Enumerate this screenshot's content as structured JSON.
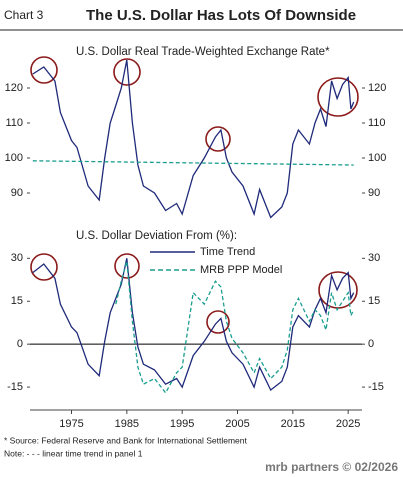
{
  "header": {
    "label": "Chart 3",
    "title": "The U.S. Dollar Has Lots Of Downside"
  },
  "chart_data": [
    {
      "type": "line",
      "title": "U.S. Dollar Real Trade-Weighted Exchange Rate*",
      "x": [
        1968,
        1970,
        1972,
        1973,
        1975,
        1976,
        1978,
        1979,
        1980,
        1981,
        1982,
        1983,
        1984,
        1985,
        1986,
        1987,
        1988,
        1990,
        1992,
        1994,
        1995,
        1997,
        1999,
        2001,
        2002,
        2003,
        2004,
        2006,
        2008,
        2009,
        2011,
        2013,
        2014,
        2015,
        2016,
        2018,
        2019,
        2020,
        2021,
        2022,
        2023,
        2024,
        2025,
        2025.5,
        2026
      ],
      "series": [
        {
          "color": "#1f2a7a",
          "values": [
            124,
            126,
            122,
            113,
            105,
            103,
            92,
            90,
            88,
            100,
            110,
            115,
            120,
            128,
            110,
            98,
            92,
            90,
            85,
            87,
            84,
            95,
            100,
            106,
            108,
            100,
            96,
            92,
            84,
            91,
            83,
            86,
            90,
            104,
            108,
            104,
            110,
            114,
            109,
            122,
            117,
            121,
            123,
            114,
            116
          ]
        },
        {
          "color": "#1a9e8f",
          "dashed": true,
          "x": [
            1968,
            2026
          ],
          "values": [
            99.2,
            98
          ]
        }
      ],
      "xlim": [
        1967.5,
        2027.5
      ],
      "ylim": [
        84,
        128
      ],
      "yticks": [
        90,
        100,
        110,
        120
      ]
    },
    {
      "type": "line",
      "title": "U.S. Dollar Deviation From (%):",
      "x": [
        1968,
        1970,
        1972,
        1973,
        1975,
        1976,
        1978,
        1979,
        1980,
        1981,
        1982,
        1983,
        1984,
        1985,
        1986,
        1987,
        1988,
        1990,
        1992,
        1994,
        1995,
        1997,
        1999,
        2001,
        2002,
        2003,
        2004,
        2006,
        2008,
        2009,
        2011,
        2013,
        2014,
        2015,
        2016,
        2018,
        2019,
        2020,
        2021,
        2022,
        2023,
        2024,
        2025,
        2025.5,
        2026
      ],
      "series": [
        {
          "name": "Time Trend",
          "color": "#1f2a7a",
          "values": [
            25,
            28,
            23,
            14,
            6,
            4,
            -7,
            -9,
            -11,
            1,
            11,
            16,
            21,
            30,
            11,
            -1,
            -7,
            -9,
            -14,
            -12,
            -15,
            -4,
            1,
            7,
            9,
            1,
            -3,
            -7,
            -15,
            -8,
            -16,
            -13,
            -8,
            6,
            10,
            6,
            12,
            16,
            11,
            24,
            19,
            23,
            25,
            16,
            18
          ]
        },
        {
          "name": "MRB PPP Model",
          "color": "#1a9e8f",
          "dashed": true,
          "values": [
            null,
            null,
            null,
            null,
            null,
            null,
            null,
            null,
            null,
            null,
            null,
            14,
            22,
            29,
            8,
            -8,
            -14,
            -12,
            -17,
            -10,
            -8,
            18,
            14,
            22,
            20,
            8,
            2,
            -3,
            -10,
            -5,
            -12,
            -8,
            -2,
            12,
            16,
            8,
            12,
            10,
            5,
            18,
            12,
            15,
            18,
            10,
            12
          ]
        }
      ],
      "xlim": [
        1967.5,
        2027.5
      ],
      "xticks": [
        1975,
        1985,
        1995,
        2005,
        2015,
        2025
      ],
      "ylim": [
        -23,
        35
      ],
      "yticks": [
        -15,
        0,
        15,
        30
      ]
    }
  ],
  "footer": {
    "source": "* Source: Federal Reserve and Bank for International Settlement",
    "note": "Note: - - - linear time trend in panel 1",
    "logo": "mrb partners © 02/2026"
  }
}
